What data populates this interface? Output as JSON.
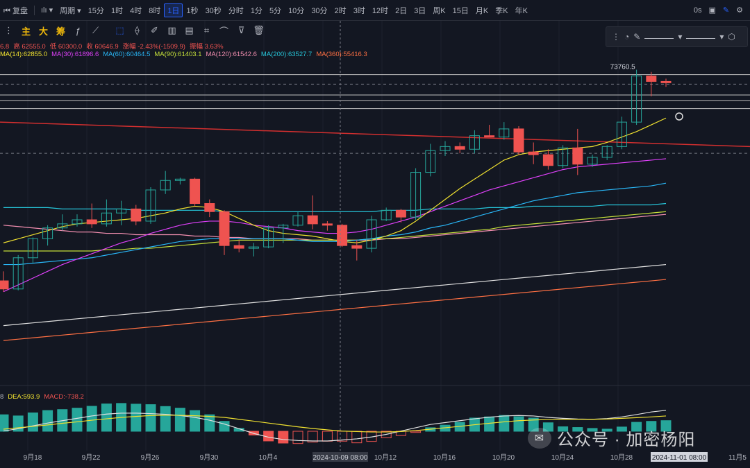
{
  "toolbar": {
    "back_label": "复盘",
    "period_label": "周期",
    "intervals": [
      "15分",
      "1时",
      "4时",
      "8时",
      "1日",
      "1秒",
      "30秒",
      "分时",
      "1分",
      "5分",
      "10分",
      "30分",
      "2时",
      "3时",
      "12时",
      "2日",
      "3日",
      "周K",
      "15日",
      "月K",
      "季K",
      "年K"
    ],
    "active_interval": "1日",
    "right_value": "0s"
  },
  "toolbar2": {
    "chars": [
      "主",
      "大",
      "筹"
    ]
  },
  "legend": {
    "ohlc": [
      {
        "text": "6.8",
        "color": "#ef5350"
      },
      {
        "text": "高 62555.0",
        "color": "#ef5350"
      },
      {
        "text": "低 60300.0",
        "color": "#ef5350"
      },
      {
        "text": "收 60646.9",
        "color": "#ef5350"
      },
      {
        "text": "涨幅 -2.43%(-1509.9)",
        "color": "#ef5350"
      },
      {
        "text": "振幅 3.63%",
        "color": "#ef5350"
      }
    ],
    "ma": [
      {
        "text": "MA(14):62855.0",
        "color": "#f0e130"
      },
      {
        "text": "MA(30):61896.6",
        "color": "#e040fb"
      },
      {
        "text": "MA(60):60464.5",
        "color": "#29b6f6"
      },
      {
        "text": "MA(90):61403.1",
        "color": "#c6e03a"
      },
      {
        "text": "MA(120):61542.6",
        "color": "#f48fb1"
      },
      {
        "text": "MA(200):63527.7",
        "color": "#26c6da"
      },
      {
        "text": "MA(360):55416.3",
        "color": "#ff7043"
      }
    ],
    "macd": [
      {
        "text": "8",
        "color": "#b2b5be"
      },
      {
        "text": "DEA:593.9",
        "color": "#f0e130"
      },
      {
        "text": "MACD:-738.2",
        "color": "#ef5350"
      }
    ]
  },
  "watermark": "公众号 · 加密杨阳",
  "colors": {
    "up": "#26a69a",
    "down": "#ef5350",
    "grid": "#2a2e39"
  },
  "chart_data": {
    "type": "candlestick",
    "x_ticks": [
      "9月18",
      "9月22",
      "9月26",
      "9月30",
      "10月4",
      "10月12",
      "10月16",
      "10月20",
      "10月24",
      "10月28",
      "11月5"
    ],
    "crosshair_label": "2024-10-09 08:00",
    "cursor_label": "2024-11-01 08:00",
    "high_label": "73760.5",
    "candles": [
      {
        "o": 58200,
        "h": 58900,
        "l": 57400,
        "c": 57600
      },
      {
        "o": 57600,
        "h": 60100,
        "l": 57500,
        "c": 59900
      },
      {
        "o": 59900,
        "h": 61400,
        "l": 59500,
        "c": 61300
      },
      {
        "o": 61300,
        "h": 62300,
        "l": 60800,
        "c": 62100
      },
      {
        "o": 62100,
        "h": 63100,
        "l": 61900,
        "c": 62400
      },
      {
        "o": 62400,
        "h": 63100,
        "l": 62200,
        "c": 62700
      },
      {
        "o": 62700,
        "h": 63900,
        "l": 62100,
        "c": 62400
      },
      {
        "o": 62400,
        "h": 64200,
        "l": 62200,
        "c": 63200
      },
      {
        "o": 63200,
        "h": 64100,
        "l": 62300,
        "c": 63500
      },
      {
        "o": 63500,
        "h": 63800,
        "l": 62300,
        "c": 62600
      },
      {
        "o": 62600,
        "h": 65100,
        "l": 62400,
        "c": 64900
      },
      {
        "o": 64900,
        "h": 66300,
        "l": 64600,
        "c": 65600
      },
      {
        "o": 65600,
        "h": 65800,
        "l": 65300,
        "c": 65700
      },
      {
        "o": 65700,
        "h": 65800,
        "l": 63700,
        "c": 63900
      },
      {
        "o": 63900,
        "h": 64200,
        "l": 62900,
        "c": 63300
      },
      {
        "o": 63300,
        "h": 63400,
        "l": 60100,
        "c": 60800
      },
      {
        "o": 60800,
        "h": 61200,
        "l": 60300,
        "c": 60600
      },
      {
        "o": 60600,
        "h": 61000,
        "l": 60000,
        "c": 60700
      },
      {
        "o": 60700,
        "h": 62300,
        "l": 60600,
        "c": 62100
      },
      {
        "o": 62100,
        "h": 62400,
        "l": 61000,
        "c": 62300
      },
      {
        "o": 62300,
        "h": 63300,
        "l": 62200,
        "c": 63000
      },
      {
        "o": 63000,
        "h": 64500,
        "l": 62000,
        "c": 62400
      },
      {
        "o": 62400,
        "h": 62600,
        "l": 61900,
        "c": 62300
      },
      {
        "o": 62300,
        "h": 62400,
        "l": 60700,
        "c": 60800
      },
      {
        "o": 60800,
        "h": 61200,
        "l": 59700,
        "c": 60600
      },
      {
        "o": 60600,
        "h": 63000,
        "l": 60300,
        "c": 62700
      },
      {
        "o": 62700,
        "h": 63600,
        "l": 62600,
        "c": 63400
      },
      {
        "o": 63400,
        "h": 63500,
        "l": 62500,
        "c": 62900
      },
      {
        "o": 62900,
        "h": 66500,
        "l": 62700,
        "c": 66200
      },
      {
        "o": 66200,
        "h": 68300,
        "l": 65900,
        "c": 67800
      },
      {
        "o": 67800,
        "h": 68500,
        "l": 67400,
        "c": 68100
      },
      {
        "o": 68100,
        "h": 68400,
        "l": 67600,
        "c": 67900
      },
      {
        "o": 67900,
        "h": 69300,
        "l": 67600,
        "c": 68900
      },
      {
        "o": 68900,
        "h": 69700,
        "l": 68800,
        "c": 68800
      },
      {
        "o": 68800,
        "h": 69900,
        "l": 68600,
        "c": 69400
      },
      {
        "o": 69400,
        "h": 69600,
        "l": 67500,
        "c": 67700
      },
      {
        "o": 67700,
        "h": 68400,
        "l": 66800,
        "c": 67500
      },
      {
        "o": 67500,
        "h": 67900,
        "l": 66400,
        "c": 66700
      },
      {
        "o": 66700,
        "h": 68200,
        "l": 66500,
        "c": 68000
      },
      {
        "o": 68000,
        "h": 69400,
        "l": 66000,
        "c": 66800
      },
      {
        "o": 66800,
        "h": 67500,
        "l": 66600,
        "c": 67300
      },
      {
        "o": 67300,
        "h": 68200,
        "l": 67100,
        "c": 68100
      },
      {
        "o": 68100,
        "h": 70300,
        "l": 67900,
        "c": 69900
      },
      {
        "o": 69900,
        "h": 73760.5,
        "l": 69700,
        "c": 73300
      },
      {
        "o": 73300,
        "h": 73600,
        "l": 71800,
        "c": 72900
      },
      {
        "o": 72900,
        "h": 73100,
        "l": 72500,
        "c": 72800
      }
    ],
    "ma14": [
      61000,
      61300,
      61600,
      61900,
      62200,
      62400,
      62500,
      62600,
      62700,
      62800,
      63000,
      63200,
      63500,
      63700,
      63600,
      63300,
      62800,
      62300,
      61900,
      61700,
      61600,
      61500,
      61300,
      61100,
      61000,
      61200,
      61500,
      61900,
      62600,
      63400,
      64200,
      65000,
      65700,
      66400,
      67100,
      67500,
      67700,
      67800,
      67900,
      68000,
      68100,
      68400,
      68800,
      69200,
      69700,
      70200
    ],
    "ma30": [
      57400,
      57900,
      58400,
      58900,
      59400,
      59800,
      60200,
      60600,
      61000,
      61300,
      61700,
      62000,
      62300,
      62500,
      62600,
      62600,
      62500,
      62300,
      62200,
      62100,
      61900,
      61800,
      61700,
      61700,
      61800,
      62000,
      62300,
      62600,
      62900,
      63300,
      63700,
      64100,
      64500,
      64900,
      65200,
      65500,
      65800,
      66100,
      66400,
      66600,
      66700,
      66800,
      66900,
      67000,
      67100,
      67200
    ],
    "ma60": [
      59400,
      59400,
      59500,
      59600,
      59700,
      59800,
      59900,
      60100,
      60300,
      60500,
      60700,
      60900,
      61100,
      61200,
      61300,
      61300,
      61300,
      61300,
      61300,
      61300,
      61200,
      61100,
      61100,
      61100,
      61200,
      61300,
      61500,
      61600,
      61800,
      62100,
      62300,
      62600,
      62900,
      63200,
      63500,
      63800,
      64100,
      64300,
      64500,
      64700,
      64800,
      64900,
      65000,
      65100,
      65200,
      65400
    ],
    "ma90": [
      60400,
      60400,
      60400,
      60400,
      60400,
      60400,
      60400,
      60500,
      60500,
      60600,
      60600,
      60700,
      60800,
      60900,
      61000,
      61100,
      61200,
      61200,
      61200,
      61200,
      61200,
      61200,
      61200,
      61200,
      61200,
      61300,
      61300,
      61400,
      61500,
      61600,
      61700,
      61800,
      61900,
      62000,
      62200,
      62300,
      62400,
      62500,
      62600,
      62700,
      62800,
      62900,
      63000,
      63100,
      63200,
      63300
    ],
    "ma120": [
      62300,
      62200,
      62100,
      62000,
      61900,
      61800,
      61800,
      61700,
      61700,
      61600,
      61600,
      61600,
      61600,
      61500,
      61500,
      61400,
      61400,
      61300,
      61300,
      61300,
      61300,
      61200,
      61200,
      61200,
      61200,
      61200,
      61300,
      61300,
      61400,
      61500,
      61600,
      61700,
      61800,
      61900,
      62000,
      62100,
      62200,
      62300,
      62400,
      62500,
      62600,
      62700,
      62800,
      62900,
      63000,
      63100
    ],
    "ma200": [
      63600,
      63600,
      63600,
      63600,
      63500,
      63500,
      63500,
      63500,
      63500,
      63400,
      63400,
      63400,
      63400,
      63400,
      63400,
      63300,
      63300,
      63300,
      63300,
      63300,
      63300,
      63300,
      63300,
      63300,
      63300,
      63300,
      63400,
      63400,
      63400,
      63500,
      63500,
      63500,
      63500,
      63600,
      63600,
      63600,
      63700,
      63700,
      63700,
      63700,
      63700,
      63800,
      63800,
      63800,
      63800,
      63900
    ],
    "white_trend": [
      54900,
      55000,
      55100,
      55200,
      55300,
      55400,
      55500,
      55600,
      55700,
      55800,
      55900,
      56000,
      56100,
      56200,
      56300,
      56400,
      56500,
      56600,
      56700,
      56800,
      56900,
      57000,
      57100,
      57200,
      57300,
      57400,
      57500,
      57600,
      57700,
      57800,
      57900,
      58000,
      58100,
      58200,
      58300,
      58400,
      58500,
      58600,
      58700,
      58800,
      58900,
      59000,
      59100,
      59200,
      59300,
      59400
    ],
    "ma360": [
      53800,
      53900,
      54000,
      54100,
      54200,
      54300,
      54400,
      54500,
      54600,
      54700,
      54800,
      54900,
      55000,
      55100,
      55200,
      55300,
      55400,
      55500,
      55600,
      55700,
      55800,
      55900,
      56000,
      56100,
      56200,
      56300,
      56400,
      56500,
      56600,
      56700,
      56800,
      56900,
      57000,
      57100,
      57200,
      57300,
      57400,
      57500,
      57600,
      57700,
      57800,
      57900,
      58000,
      58100,
      58200,
      58300
    ],
    "hlines": [
      73400,
      72700,
      71900,
      71500,
      70900,
      67600
    ],
    "dashed_hlines": [
      72700,
      67600
    ],
    "red_trend": [
      69900,
      68100
    ],
    "macd_hist": [
      700,
      650,
      780,
      880,
      920,
      980,
      1060,
      1160,
      1180,
      1150,
      1130,
      1050,
      980,
      880,
      700,
      420,
      120,
      -160,
      -410,
      -500,
      -520,
      -460,
      -420,
      -420,
      -490,
      -430,
      -280,
      -180,
      -50,
      150,
      260,
      380,
      560,
      610,
      670,
      620,
      560,
      360,
      190,
      160,
      120,
      90,
      180,
      380,
      420,
      450
    ],
    "dif": [
      420,
      520,
      640,
      760,
      860,
      960,
      1060,
      1140,
      1180,
      1180,
      1160,
      1130,
      1080,
      1000,
      880,
      720,
      520,
      320,
      160,
      60,
      20,
      0,
      0,
      40,
      90,
      170,
      280,
      420,
      560,
      700,
      780,
      860,
      940,
      1010,
      1060,
      1080,
      1060,
      1000,
      960,
      930,
      920,
      950,
      1020,
      1120,
      1230,
      1300
    ],
    "dea": [
      500,
      560,
      620,
      680,
      750,
      810,
      880,
      940,
      1000,
      1040,
      1080,
      1090,
      1090,
      1070,
      1040,
      1000,
      920,
      840,
      760,
      680,
      600,
      530,
      470,
      420,
      400,
      380,
      380,
      400,
      440,
      500,
      560,
      620,
      690,
      750,
      810,
      860,
      890,
      910,
      920,
      920,
      920,
      930,
      960,
      990,
      1020,
      1060
    ]
  }
}
